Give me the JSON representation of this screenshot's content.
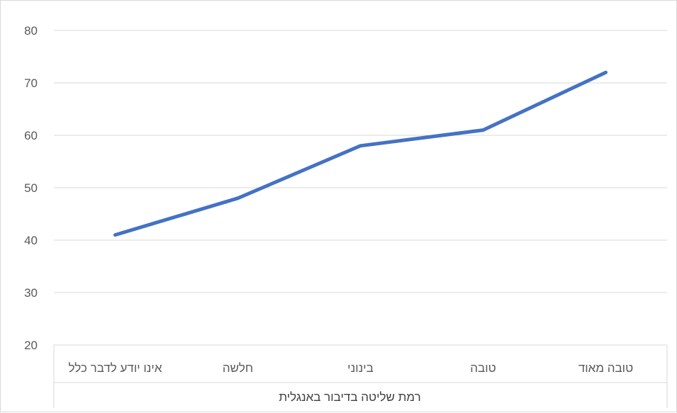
{
  "chart_data": {
    "type": "line",
    "title": "",
    "xlabel": "רמת שליטה בדיבור באנגלית",
    "ylabel": "",
    "categories": [
      "אינו יודע לדבר כלל",
      "חלשה",
      "בינוני",
      "טובה",
      "טובה מאוד"
    ],
    "series": [
      {
        "values": [
          41,
          48,
          58,
          61,
          72
        ],
        "color": "#4472c4"
      }
    ],
    "ylim": [
      20,
      80
    ],
    "yticks": [
      20,
      30,
      40,
      50,
      60,
      70,
      80
    ],
    "grid": true,
    "legend": "none"
  }
}
